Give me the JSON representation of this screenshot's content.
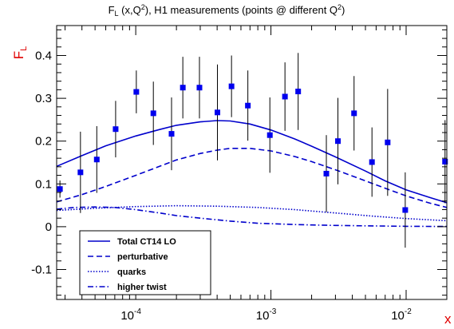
{
  "chart_data": {
    "type": "scatter",
    "title": "F_L (x,Q²),  H1 measurements (points @ different Q²)",
    "title_parts": {
      "f": "F",
      "f_sub": "L",
      "args": " (x,Q",
      "sup1": "2",
      "rest": "),  H1 measurements (points @ different Q",
      "sup2": "2",
      "close": ")"
    },
    "xlabel": "x",
    "ylabel": "F",
    "ylabel_sub": "L",
    "x_scale": "log",
    "xlim": [
      2.6e-05,
      0.02
    ],
    "ylim": [
      -0.17,
      0.47
    ],
    "x_ticks": [
      {
        "value": 0.0001,
        "base": "10",
        "exp": "-4"
      },
      {
        "value": 0.001,
        "base": "10",
        "exp": "-3"
      },
      {
        "value": 0.01,
        "base": "10",
        "exp": "-2"
      }
    ],
    "y_ticks": [
      {
        "value": -0.1,
        "label": "-0.1"
      },
      {
        "value": 0,
        "label": "0"
      },
      {
        "value": 0.1,
        "label": "0.1"
      },
      {
        "value": 0.2,
        "label": "0.2"
      },
      {
        "value": 0.3,
        "label": "0.3"
      },
      {
        "value": 0.4,
        "label": "0.4"
      }
    ],
    "grid": false,
    "legend_position": "bottom-left",
    "colors": {
      "curves": "#0000cc",
      "points": "#0000ee",
      "errorbars": "#000000",
      "axis_labels": "#e00000"
    },
    "points": [
      {
        "x": 2.75e-05,
        "y": 0.088,
        "err": 0.02
      },
      {
        "x": 3.9e-05,
        "y": 0.127,
        "err": 0.095
      },
      {
        "x": 5.15e-05,
        "y": 0.157,
        "err": 0.078
      },
      {
        "x": 7.1e-05,
        "y": 0.228,
        "err": 0.066
      },
      {
        "x": 0.000101,
        "y": 0.315,
        "err": 0.05
      },
      {
        "x": 0.000135,
        "y": 0.265,
        "err": 0.074
      },
      {
        "x": 0.000184,
        "y": 0.217,
        "err": 0.085
      },
      {
        "x": 0.000223,
        "y": 0.325,
        "err": 0.072
      },
      {
        "x": 0.000296,
        "y": 0.325,
        "err": 0.072
      },
      {
        "x": 0.000402,
        "y": 0.267,
        "err": 0.112
      },
      {
        "x": 0.000511,
        "y": 0.328,
        "err": 0.072
      },
      {
        "x": 0.000675,
        "y": 0.283,
        "err": 0.082
      },
      {
        "x": 0.000982,
        "y": 0.214,
        "err": 0.088
      },
      {
        "x": 0.00127,
        "y": 0.304,
        "err": 0.08
      },
      {
        "x": 0.00159,
        "y": 0.316,
        "err": 0.09
      },
      {
        "x": 0.00257,
        "y": 0.124,
        "err": 0.09
      },
      {
        "x": 0.00313,
        "y": 0.2,
        "err": 0.101
      },
      {
        "x": 0.00412,
        "y": 0.265,
        "err": 0.087
      },
      {
        "x": 0.00559,
        "y": 0.151,
        "err": 0.081
      },
      {
        "x": 0.0073,
        "y": 0.197,
        "err": 0.125
      },
      {
        "x": 0.00985,
        "y": 0.039,
        "err": 0.088
      },
      {
        "x": 0.0194,
        "y": 0.152,
        "err": 0.097
      }
    ],
    "series": [
      {
        "name": "Total CT14 LO",
        "style": "solid",
        "x": [
          2.6e-05,
          4e-05,
          6e-05,
          0.0001,
          0.00015,
          0.0002,
          0.0003,
          0.0004,
          0.0005,
          0.0007,
          0.001,
          0.0015,
          0.002,
          0.003,
          0.005,
          0.007,
          0.01,
          0.015,
          0.02
        ],
        "y": [
          0.141,
          0.166,
          0.189,
          0.212,
          0.227,
          0.237,
          0.245,
          0.248,
          0.247,
          0.24,
          0.226,
          0.205,
          0.188,
          0.163,
          0.13,
          0.107,
          0.086,
          0.068,
          0.056
        ]
      },
      {
        "name": "perturbative",
        "style": "dashed",
        "x": [
          2.6e-05,
          4e-05,
          6e-05,
          0.0001,
          0.00015,
          0.0002,
          0.0003,
          0.0004,
          0.0005,
          0.0007,
          0.001,
          0.0015,
          0.002,
          0.003,
          0.005,
          0.007,
          0.01,
          0.015,
          0.02
        ],
        "y": [
          0.058,
          0.075,
          0.094,
          0.12,
          0.141,
          0.156,
          0.171,
          0.179,
          0.183,
          0.183,
          0.177,
          0.164,
          0.152,
          0.133,
          0.107,
          0.09,
          0.072,
          0.055,
          0.045
        ]
      },
      {
        "name": " quarks",
        "style": "dotted",
        "x": [
          2.6e-05,
          5e-05,
          0.0001,
          0.0002,
          0.0004,
          0.0008,
          0.0015,
          0.003,
          0.006,
          0.01,
          0.02
        ],
        "y": [
          0.038,
          0.043,
          0.047,
          0.049,
          0.048,
          0.045,
          0.04,
          0.032,
          0.024,
          0.019,
          0.014
        ]
      },
      {
        "name": "higher twist",
        "style": "dashdot",
        "x": [
          2.6e-05,
          3.5e-05,
          5e-05,
          7e-05,
          0.0001,
          0.00015,
          0.0002,
          0.0003,
          0.0005,
          0.0008,
          0.001,
          0.0015,
          0.002,
          0.003,
          0.005,
          0.01,
          0.02
        ],
        "y": [
          0.041,
          0.045,
          0.046,
          0.045,
          0.04,
          0.032,
          0.026,
          0.02,
          0.013,
          0.008,
          0.007,
          0.005,
          0.004,
          0.003,
          0.002,
          0.001,
          0.0005
        ]
      }
    ]
  }
}
